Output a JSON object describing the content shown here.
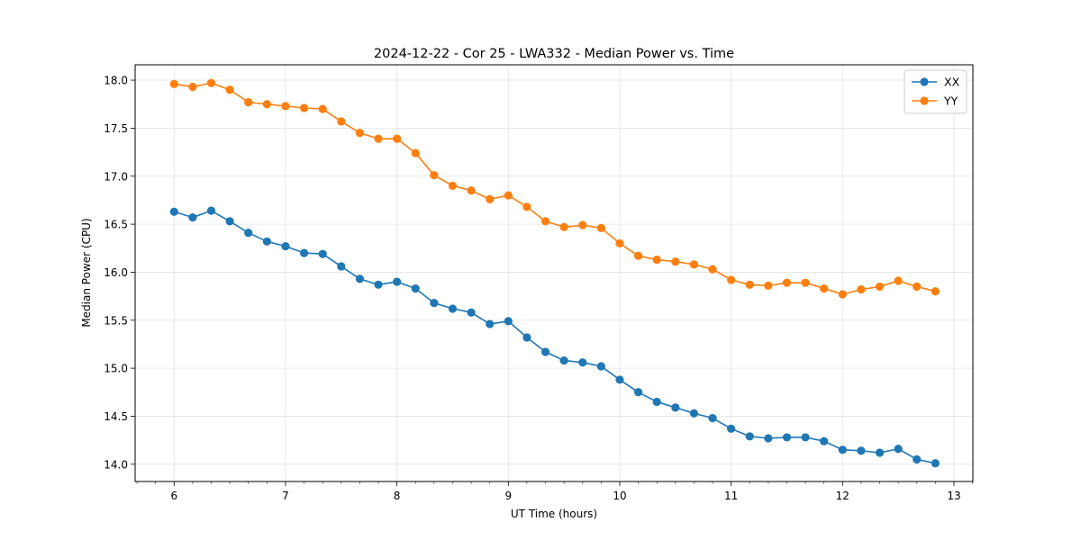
{
  "chart_data": {
    "type": "line",
    "title": "2024-12-22 - Cor 25 - LWA332 - Median Power vs. Time",
    "xlabel": "UT Time (hours)",
    "ylabel": "Median Power (CPU)",
    "xlim": [
      5.65,
      13.17
    ],
    "ylim": [
      13.82,
      18.16
    ],
    "xticks": [
      6,
      7,
      8,
      9,
      10,
      11,
      12,
      13
    ],
    "xtick_labels": [
      "6",
      "7",
      "8",
      "9",
      "10",
      "11",
      "12",
      "13"
    ],
    "yticks": [
      14.0,
      14.5,
      15.0,
      15.5,
      16.0,
      16.5,
      17.0,
      17.5,
      18.0
    ],
    "ytick_labels": [
      "14.0",
      "14.5",
      "15.0",
      "15.5",
      "16.0",
      "16.5",
      "17.0",
      "17.5",
      "18.0"
    ],
    "grid": true,
    "legend_position": "top-right",
    "x": [
      6.0,
      6.1667,
      6.3333,
      6.5,
      6.6667,
      6.8333,
      7.0,
      7.1667,
      7.3333,
      7.5,
      7.6667,
      7.8333,
      8.0,
      8.1667,
      8.3333,
      8.5,
      8.6667,
      8.8333,
      9.0,
      9.1667,
      9.3333,
      9.5,
      9.6667,
      9.8333,
      10.0,
      10.1667,
      10.3333,
      10.5,
      10.6667,
      10.8333,
      11.0,
      11.1667,
      11.3333,
      11.5,
      11.6667,
      11.8333,
      12.0,
      12.1667,
      12.3333,
      12.5,
      12.6667,
      12.8333
    ],
    "series": [
      {
        "name": "XX",
        "color": "#1f77b4",
        "values": [
          16.63,
          16.57,
          16.64,
          16.53,
          16.41,
          16.32,
          16.27,
          16.2,
          16.19,
          16.06,
          15.93,
          15.87,
          15.9,
          15.83,
          15.68,
          15.62,
          15.58,
          15.46,
          15.49,
          15.32,
          15.17,
          15.08,
          15.06,
          15.02,
          14.88,
          14.75,
          14.65,
          14.59,
          14.53,
          14.48,
          14.37,
          14.29,
          14.27,
          14.28,
          14.28,
          14.24,
          14.15,
          14.14,
          14.12,
          14.16,
          14.05,
          14.01
        ]
      },
      {
        "name": "YY",
        "color": "#ff7f0e",
        "values": [
          17.96,
          17.93,
          17.97,
          17.9,
          17.77,
          17.75,
          17.73,
          17.71,
          17.7,
          17.57,
          17.45,
          17.39,
          17.39,
          17.24,
          17.01,
          16.9,
          16.85,
          16.76,
          16.8,
          16.68,
          16.53,
          16.47,
          16.49,
          16.46,
          16.3,
          16.17,
          16.13,
          16.11,
          16.08,
          16.03,
          15.92,
          15.87,
          15.86,
          15.89,
          15.89,
          15.83,
          15.77,
          15.82,
          15.85,
          15.91,
          15.85,
          15.8
        ]
      }
    ]
  }
}
